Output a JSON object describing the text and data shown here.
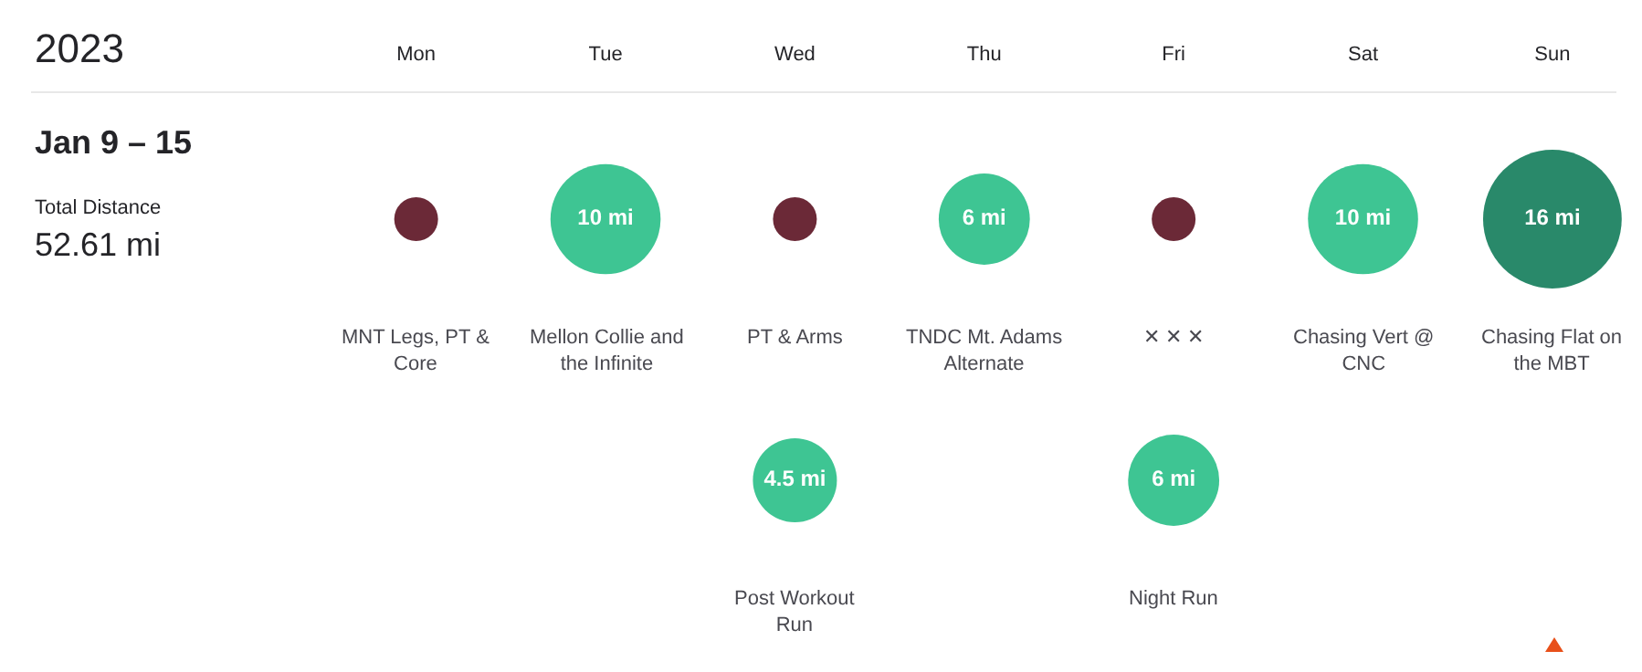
{
  "chart_data": {
    "type": "other",
    "title": "2023",
    "subtitle": "Jan 9 – 15",
    "categories": [
      "Mon",
      "Tue",
      "Wed",
      "Thu",
      "Fri",
      "Sat",
      "Sun"
    ],
    "annotations": [
      "Total Distance",
      "52.61 mi",
      "MNT Legs, PT & Core",
      "Mellon Collie and the Infinite",
      "PT & Arms",
      "TNDC Mt. Adams Alternate",
      "✕ ✕ ✕",
      "Chasing Vert @ CNC",
      "Chasing Flat on the MBT",
      "Post Workout Run",
      "Night Run"
    ],
    "series": [
      {
        "x": [
          "Mon",
          "Tue",
          "Wed",
          "Thu",
          "Fri",
          "Sat",
          "Sun",
          "Wed",
          "Fri"
        ],
        "values": [
          null,
          10,
          null,
          6,
          null,
          10,
          16,
          4.5,
          6
        ],
        "colors": [
          "#6b2937",
          "#3ec593",
          "#6b2937",
          "#3ec593",
          "#6b2937",
          "#3ec593",
          "#29896a",
          "#3ec593",
          "#3ec593"
        ],
        "value_labels": [
          null,
          "10 mi",
          null,
          "6 mi",
          null,
          "10 mi",
          "16 mi",
          "4.5 mi",
          "6 mi"
        ]
      }
    ]
  }
}
